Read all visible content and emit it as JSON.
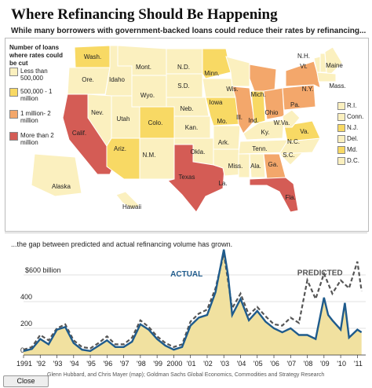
{
  "title": "Where Refinancing Should Be Happening",
  "subtitle": "While many borrowers with government-backed loans could reduce their rates by refinancing...",
  "map": {
    "legend_title": "Number of loans where rates could be cut",
    "legend": [
      {
        "label": "Less than 500,000",
        "color": "#fbf0bf"
      },
      {
        "label": "500,000 - 1 million",
        "color": "#f8d964"
      },
      {
        "label": "1 million- 2 million",
        "color": "#f3a76b"
      },
      {
        "label": "More than 2 million",
        "color": "#d45c55"
      }
    ],
    "states": [
      {
        "label": "Wash.",
        "color": "#f8d964"
      },
      {
        "label": "Ore.",
        "color": "#fbf0bf"
      },
      {
        "label": "Calif.",
        "color": "#d45c55"
      },
      {
        "label": "Idaho",
        "color": "#fbf0bf"
      },
      {
        "label": "Nev.",
        "color": "#fbf0bf"
      },
      {
        "label": "Mont.",
        "color": "#fbf0bf"
      },
      {
        "label": "Wyo.",
        "color": "#fbf0bf"
      },
      {
        "label": "Utah",
        "color": "#fbf0bf"
      },
      {
        "label": "Ariz.",
        "color": "#f8d964"
      },
      {
        "label": "Colo.",
        "color": "#f8d964"
      },
      {
        "label": "N.M.",
        "color": "#fbf0bf"
      },
      {
        "label": "N.D.",
        "color": "#fbf0bf"
      },
      {
        "label": "S.D.",
        "color": "#fbf0bf"
      },
      {
        "label": "Neb.",
        "color": "#fbf0bf"
      },
      {
        "label": "Kan.",
        "color": "#fbf0bf"
      },
      {
        "label": "Okla.",
        "color": "#fbf0bf"
      },
      {
        "label": "Texas",
        "color": "#d45c55"
      },
      {
        "label": "Minn.",
        "color": "#f8d964"
      },
      {
        "label": "Iowa",
        "color": "#fbf0bf"
      },
      {
        "label": "Mo.",
        "color": "#f8d964"
      },
      {
        "label": "Ark.",
        "color": "#fbf0bf"
      },
      {
        "label": "La.",
        "color": "#fbf0bf"
      },
      {
        "label": "Wis.",
        "color": "#fbf0bf"
      },
      {
        "label": "Ill.",
        "color": "#f3a76b"
      },
      {
        "label": "Mich.",
        "color": "#f3a76b"
      },
      {
        "label": "Ind.",
        "color": "#f8d964"
      },
      {
        "label": "Ohio",
        "color": "#f3a76b"
      },
      {
        "label": "Ky.",
        "color": "#fbf0bf"
      },
      {
        "label": "Tenn.",
        "color": "#fbf0bf"
      },
      {
        "label": "Miss.",
        "color": "#fbf0bf"
      },
      {
        "label": "Ala.",
        "color": "#fbf0bf"
      },
      {
        "label": "Ga.",
        "color": "#f3a76b"
      },
      {
        "label": "Fla.",
        "color": "#d45c55"
      },
      {
        "label": "S.C.",
        "color": "#fbf0bf"
      },
      {
        "label": "N.C.",
        "color": "#fbf0bf"
      },
      {
        "label": "Va.",
        "color": "#f8d964"
      },
      {
        "label": "W.Va.",
        "color": "#fbf0bf"
      },
      {
        "label": "Pa.",
        "color": "#f3a76b"
      },
      {
        "label": "N.Y.",
        "color": "#f3a76b"
      },
      {
        "label": "Vt.",
        "color": "#fbf0bf"
      },
      {
        "label": "N.H.",
        "color": "#fbf0bf"
      },
      {
        "label": "Maine",
        "color": "#fbf0bf"
      },
      {
        "label": "Mass.",
        "color": "#fbf0bf"
      },
      {
        "label": "Alaska",
        "color": "#fbf0bf"
      },
      {
        "label": "Hawaii",
        "color": "#fbf0bf"
      }
    ],
    "small_states": [
      {
        "label": "R.I.",
        "color": "#fbf0bf"
      },
      {
        "label": "Conn.",
        "color": "#fbf0bf"
      },
      {
        "label": "N.J.",
        "color": "#f8d964"
      },
      {
        "label": "Del.",
        "color": "#fbf0bf"
      },
      {
        "label": "Md.",
        "color": "#f8d964"
      },
      {
        "label": "D.C.",
        "color": "#fbf0bf"
      }
    ]
  },
  "chart_caption": "...the gap between predicted and actual refinancing volume has grown.",
  "chart_data": {
    "type": "line",
    "ylabel_top": "$600 billion",
    "y_ticks": [
      "400",
      "200",
      "0"
    ],
    "ylim": [
      0,
      800
    ],
    "x_tick_labels": [
      "1991",
      "'92",
      "'93",
      "'94",
      "'95",
      "'96",
      "'97",
      "'98",
      "'99",
      "2000",
      "'01",
      "'02",
      "'03",
      "'04",
      "'05",
      "'06",
      "'07",
      "'08",
      "'09",
      "'10",
      "'11"
    ],
    "x_range": [
      1991,
      2011.5
    ],
    "series": [
      {
        "name": "ACTUAL",
        "color": "#1f5b8c",
        "area_fill": "#f1e1a0",
        "x": [
          1991,
          1991.5,
          1992,
          1992.5,
          1993,
          1993.5,
          1994,
          1994.5,
          1995,
          1995.5,
          1996,
          1996.5,
          1997,
          1997.5,
          1998,
          1998.5,
          1999,
          1999.5,
          2000,
          2000.5,
          2001,
          2001.5,
          2002,
          2002.5,
          2003,
          2003.25,
          2003.5,
          2004,
          2004.5,
          2005,
          2005.5,
          2006,
          2006.5,
          2007,
          2007.5,
          2008,
          2008.5,
          2009,
          2009.25,
          2009.5,
          2010,
          2010.25,
          2010.5,
          2011,
          2011.25
        ],
        "values": [
          30,
          45,
          120,
          80,
          190,
          210,
          90,
          40,
          30,
          70,
          110,
          60,
          60,
          100,
          230,
          190,
          120,
          70,
          40,
          60,
          220,
          280,
          300,
          470,
          790,
          600,
          300,
          420,
          260,
          330,
          250,
          200,
          170,
          200,
          150,
          150,
          120,
          430,
          300,
          260,
          190,
          390,
          130,
          190,
          170
        ]
      },
      {
        "name": "PREDICTED",
        "color": "#555555",
        "x": [
          1991,
          1991.5,
          1992,
          1992.5,
          1993,
          1993.5,
          1994,
          1994.5,
          1995,
          1995.5,
          1996,
          1996.5,
          1997,
          1997.5,
          1998,
          1998.5,
          1999,
          1999.5,
          2000,
          2000.5,
          2001,
          2001.5,
          2002,
          2002.5,
          2003,
          2003.5,
          2004,
          2004.5,
          2005,
          2005.5,
          2006,
          2006.5,
          2007,
          2007.5,
          2008,
          2008.5,
          2009,
          2009.5,
          2010,
          2010.5,
          2011,
          2011.25
        ],
        "values": [
          40,
          60,
          150,
          110,
          200,
          230,
          110,
          60,
          50,
          90,
          140,
          80,
          80,
          130,
          260,
          210,
          140,
          90,
          60,
          80,
          250,
          310,
          340,
          500,
          760,
          350,
          460,
          300,
          360,
          290,
          230,
          220,
          280,
          240,
          560,
          420,
          610,
          460,
          560,
          500,
          700,
          480
        ]
      }
    ],
    "grid": "horizontal"
  },
  "source_text": "Glenn Hubbard, and Chris Mayer (map); Goldman Sachs Global Economics, Commodities and Strategy Research",
  "close_label": "Close"
}
